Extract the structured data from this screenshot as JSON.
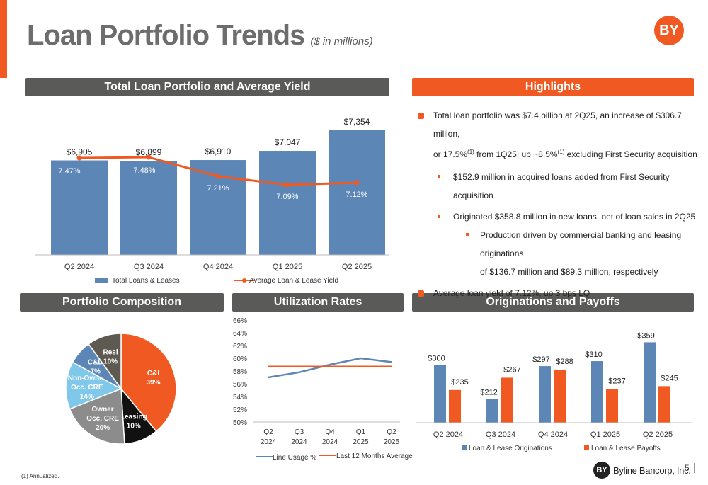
{
  "page": {
    "title": "Loan Portfolio Trends",
    "subtitle": "($ in millions)",
    "logo_text": "BY",
    "footnote": "(1)    Annualized.",
    "footer_brand": "Byline Bancorp, Inc.",
    "footer_mark": "BY",
    "page_number": "5"
  },
  "colors": {
    "accent": "#f05a22",
    "header_gray": "#5a5a58",
    "bar_blue": "#5b86b5",
    "line_orange": "#f05a22"
  },
  "sections": {
    "loan_portfolio": "Total Loan Portfolio and Average Yield",
    "highlights": "Highlights",
    "composition": "Portfolio Composition",
    "utilization": "Utilization Rates",
    "originations": "Originations and Payoffs"
  },
  "highlights": {
    "item1_line1": "Total loan portfolio was $7.4 billion at 2Q25, an increase of $306.7 million,",
    "item1_line2a": "or 17.5%",
    "item1_line2b": " from 1Q25; up ~8.5%",
    "item1_line2c": " excluding First Security acquisition",
    "footnote_marker": "(1)",
    "sub1": "$152.9 million in acquired loans added from First Security acquisition",
    "sub2": "Originated $358.8 million in new loans, net of loan sales in 2Q25",
    "subsub1_line1": "Production driven by commercial banking and leasing originations",
    "subsub1_line2": "of $136.7 million and $89.3 million, respectively",
    "item2": "Average loan yield of 7.12%, up 3 bps LQ"
  },
  "chart_data": [
    {
      "type": "bar",
      "categories": [
        "Q2 2024",
        "Q3 2024",
        "Q4 2024",
        "Q1 2025",
        "Q2 2025"
      ],
      "series": [
        {
          "name": "Total Loans & Leases",
          "values": [
            6905,
            6899,
            6910,
            7047,
            7354
          ],
          "labels": [
            "$6,905",
            "$6,899",
            "$6,910",
            "$7,047",
            "$7,354"
          ]
        },
        {
          "name": "Average Loan & Lease Yield",
          "type": "line",
          "values": [
            7.47,
            7.48,
            7.21,
            7.09,
            7.12
          ],
          "labels": [
            "7.47%",
            "7.48%",
            "7.21%",
            "7.09%",
            "7.12%"
          ]
        }
      ],
      "legend": "bottom"
    },
    {
      "type": "pie",
      "slices": [
        {
          "label": "C&I",
          "value": 39,
          "pct": "39%",
          "color": "#f05a22"
        },
        {
          "label": "Leasing",
          "value": 10,
          "pct": "10%",
          "color": "#111111"
        },
        {
          "label": "Owner Occ. CRE",
          "value": 20,
          "pct": "20%",
          "color": "#8c8c8c"
        },
        {
          "label": "Non-Owner Occ. CRE",
          "value": 14,
          "pct": "14%",
          "color": "#7fc8ea"
        },
        {
          "label": "C&D",
          "value": 7,
          "pct": "7%",
          "color": "#5b86b5"
        },
        {
          "label": "Resi",
          "value": 10,
          "pct": "10%",
          "color": "#5e5a52"
        }
      ]
    },
    {
      "type": "line",
      "categories": [
        "Q2 2024",
        "Q3 2024",
        "Q4 2024",
        "Q1 2025",
        "Q2 2025"
      ],
      "category_lines": [
        [
          "Q2",
          "2024"
        ],
        [
          "Q3",
          "2024"
        ],
        [
          "Q4",
          "2024"
        ],
        [
          "Q1",
          "2025"
        ],
        [
          "Q2",
          "2025"
        ]
      ],
      "series": [
        {
          "name": "Line Usage %",
          "values": [
            57.0,
            57.8,
            59.0,
            60.0,
            59.4
          ],
          "color": "#5b86b5"
        },
        {
          "name": "Last 12 Months Average",
          "values": [
            58.7,
            58.7,
            58.7,
            58.7,
            58.7
          ],
          "color": "#f05a22"
        }
      ],
      "ylim": [
        50,
        66
      ],
      "yticks": [
        "50%",
        "52%",
        "54%",
        "56%",
        "58%",
        "60%",
        "62%",
        "64%",
        "66%"
      ],
      "legend": "bottom"
    },
    {
      "type": "bar",
      "categories": [
        "Q2 2024",
        "Q3 2024",
        "Q4 2024",
        "Q1 2025",
        "Q2 2025"
      ],
      "series": [
        {
          "name": "Loan & Lease Originations",
          "values": [
            300,
            212,
            297,
            310,
            359
          ],
          "labels": [
            "$300",
            "$212",
            "$297",
            "$310",
            "$359"
          ],
          "color": "#5b86b5"
        },
        {
          "name": "Loan & Lease Payoffs",
          "values": [
            235,
            267,
            288,
            237,
            245
          ],
          "labels": [
            "$235",
            "$267",
            "$288",
            "$237",
            "$245"
          ],
          "color": "#f05a22"
        }
      ],
      "legend": "bottom"
    }
  ]
}
